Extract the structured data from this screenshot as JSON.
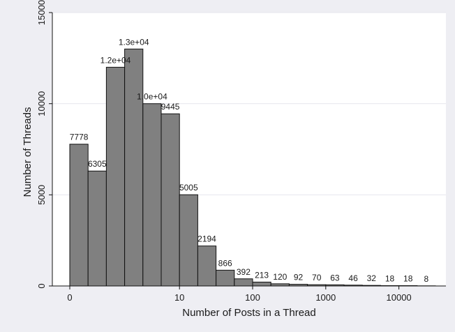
{
  "chart_data": {
    "type": "bar",
    "title": "",
    "xlabel": "Number of Posts in a Thread",
    "ylabel": "Number of Threads",
    "x_scale": "log-binned",
    "x_ticks": [
      {
        "label": "0",
        "bin_edge": 0
      },
      {
        "label": "10",
        "bin_edge": 6
      },
      {
        "label": "100",
        "bin_edge": 10
      },
      {
        "label": "1000",
        "bin_edge": 14
      },
      {
        "label": "10000",
        "bin_edge": 18
      }
    ],
    "y_ticks": [
      0,
      5000,
      10000,
      15000
    ],
    "ylim": [
      0,
      15000
    ],
    "grid": true,
    "legend": "none",
    "values": [
      7778,
      6305,
      12000,
      13000,
      10000,
      9445,
      5005,
      2194,
      866,
      392,
      213,
      120,
      92,
      70,
      63,
      46,
      32,
      18,
      18,
      8
    ],
    "data_labels": [
      "7778",
      "6305",
      "1.2e+04",
      "1.3e+04",
      "1.0e+04",
      "9445",
      "5005",
      "2194",
      "866",
      "392",
      "213",
      "120",
      "92",
      "70",
      "63",
      "46",
      "32",
      "18",
      "18",
      "8"
    ],
    "colors": {
      "bar_fill": "#808080",
      "bar_stroke": "#111111",
      "plot_bg": "#ffffff",
      "outer_bg": "#eeeef3",
      "grid": "#e6e6ee"
    }
  }
}
